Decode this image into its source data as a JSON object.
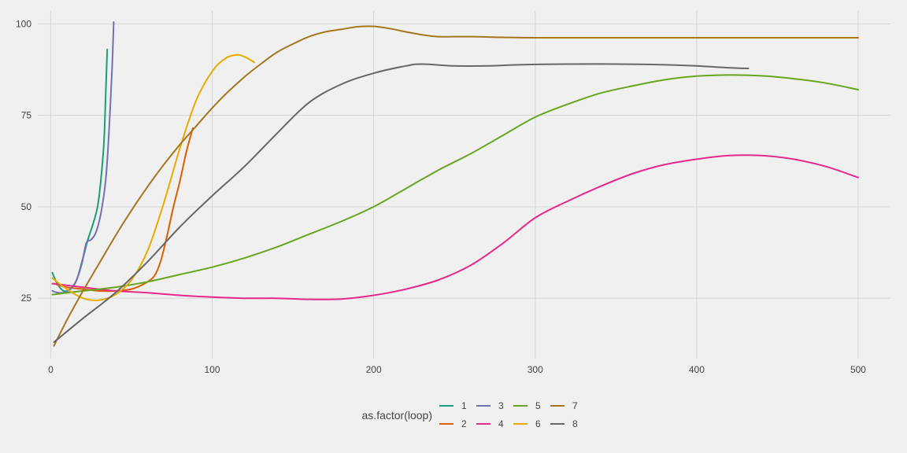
{
  "chart_data": {
    "type": "line",
    "title": "",
    "xlabel": "",
    "ylabel": "",
    "xlim": [
      -8,
      520
    ],
    "ylim": [
      8.5,
      103.5
    ],
    "x_ticks": [
      0,
      100,
      200,
      300,
      400,
      500
    ],
    "y_ticks": [
      25,
      50,
      75,
      100
    ],
    "grid": true,
    "legend": {
      "title": "as.factor(loop)",
      "position": "bottom"
    },
    "series": [
      {
        "name": "1",
        "color": "#1b9e77",
        "width": 2,
        "points": [
          [
            1,
            32
          ],
          [
            4,
            29
          ],
          [
            8,
            27
          ],
          [
            12,
            27.5
          ],
          [
            16,
            30
          ],
          [
            20,
            36
          ],
          [
            23,
            41
          ],
          [
            26,
            45
          ],
          [
            29,
            50
          ],
          [
            31,
            57
          ],
          [
            33,
            68
          ],
          [
            34,
            80
          ],
          [
            35,
            93
          ]
        ]
      },
      {
        "name": "2",
        "color": "#d95f02",
        "width": 2,
        "points": [
          [
            2,
            29
          ],
          [
            10,
            28
          ],
          [
            20,
            27.5
          ],
          [
            30,
            27
          ],
          [
            40,
            27
          ],
          [
            50,
            27.5
          ],
          [
            58,
            29
          ],
          [
            64,
            31
          ],
          [
            68,
            35
          ],
          [
            72,
            42
          ],
          [
            76,
            50
          ],
          [
            80,
            57
          ],
          [
            84,
            65
          ],
          [
            88,
            71.5
          ]
        ]
      },
      {
        "name": "3",
        "color": "#7570b3",
        "width": 2,
        "points": [
          [
            1,
            27
          ],
          [
            5,
            26.5
          ],
          [
            10,
            26.8
          ],
          [
            15,
            29
          ],
          [
            19,
            34
          ],
          [
            22,
            40
          ],
          [
            25,
            41
          ],
          [
            28,
            43
          ],
          [
            31,
            48
          ],
          [
            34,
            57
          ],
          [
            36,
            70
          ],
          [
            38,
            88
          ],
          [
            39,
            100.5
          ]
        ]
      },
      {
        "name": "4",
        "color": "#e7298a",
        "width": 2,
        "points": [
          [
            1,
            29
          ],
          [
            20,
            28
          ],
          [
            40,
            27
          ],
          [
            60,
            26.5
          ],
          [
            80,
            25.8
          ],
          [
            100,
            25.3
          ],
          [
            120,
            25
          ],
          [
            140,
            25
          ],
          [
            160,
            24.7
          ],
          [
            180,
            24.8
          ],
          [
            200,
            25.8
          ],
          [
            220,
            27.5
          ],
          [
            240,
            30
          ],
          [
            260,
            34
          ],
          [
            280,
            40
          ],
          [
            300,
            47
          ],
          [
            320,
            51.5
          ],
          [
            340,
            55.5
          ],
          [
            360,
            59
          ],
          [
            380,
            61.5
          ],
          [
            400,
            63
          ],
          [
            420,
            64
          ],
          [
            440,
            64
          ],
          [
            460,
            63
          ],
          [
            480,
            61
          ],
          [
            500,
            58
          ]
        ]
      },
      {
        "name": "5",
        "color": "#66a61e",
        "width": 2,
        "points": [
          [
            1,
            26
          ],
          [
            20,
            27
          ],
          [
            40,
            28
          ],
          [
            60,
            29.5
          ],
          [
            80,
            31.5
          ],
          [
            100,
            33.5
          ],
          [
            120,
            36
          ],
          [
            140,
            39
          ],
          [
            160,
            42.5
          ],
          [
            180,
            46
          ],
          [
            200,
            50
          ],
          [
            220,
            55
          ],
          [
            240,
            60
          ],
          [
            260,
            64.5
          ],
          [
            280,
            69.5
          ],
          [
            300,
            74.5
          ],
          [
            320,
            78
          ],
          [
            340,
            81
          ],
          [
            360,
            83
          ],
          [
            380,
            84.7
          ],
          [
            400,
            85.7
          ],
          [
            420,
            86
          ],
          [
            440,
            85.8
          ],
          [
            460,
            85
          ],
          [
            480,
            83.8
          ],
          [
            500,
            82
          ]
        ]
      },
      {
        "name": "6",
        "color": "#e6ab02",
        "width": 2,
        "points": [
          [
            1,
            30.5
          ],
          [
            10,
            27.5
          ],
          [
            20,
            25
          ],
          [
            30,
            24.5
          ],
          [
            40,
            26
          ],
          [
            50,
            30
          ],
          [
            60,
            38
          ],
          [
            70,
            51
          ],
          [
            80,
            66
          ],
          [
            90,
            79
          ],
          [
            100,
            87
          ],
          [
            108,
            90.5
          ],
          [
            115,
            91.5
          ],
          [
            120,
            91
          ],
          [
            126,
            89.5
          ]
        ]
      },
      {
        "name": "7",
        "color": "#a6761d",
        "width": 2,
        "points": [
          [
            2,
            12
          ],
          [
            10,
            19
          ],
          [
            20,
            27
          ],
          [
            30,
            34.5
          ],
          [
            40,
            42
          ],
          [
            50,
            49
          ],
          [
            60,
            55.5
          ],
          [
            70,
            61.5
          ],
          [
            80,
            67
          ],
          [
            90,
            72
          ],
          [
            100,
            77
          ],
          [
            110,
            81.5
          ],
          [
            120,
            85.5
          ],
          [
            130,
            89
          ],
          [
            140,
            92.2
          ],
          [
            150,
            94.5
          ],
          [
            160,
            96.5
          ],
          [
            170,
            97.8
          ],
          [
            180,
            98.5
          ],
          [
            190,
            99.2
          ],
          [
            200,
            99.3
          ],
          [
            210,
            98.7
          ],
          [
            220,
            97.8
          ],
          [
            230,
            97
          ],
          [
            240,
            96.5
          ],
          [
            260,
            96.5
          ],
          [
            280,
            96.3
          ],
          [
            300,
            96.2
          ],
          [
            350,
            96.2
          ],
          [
            400,
            96.2
          ],
          [
            450,
            96.2
          ],
          [
            500,
            96.2
          ]
        ]
      },
      {
        "name": "8",
        "color": "#666666",
        "width": 2,
        "points": [
          [
            2,
            13
          ],
          [
            20,
            19.5
          ],
          [
            40,
            26.5
          ],
          [
            60,
            35
          ],
          [
            80,
            44.5
          ],
          [
            100,
            53
          ],
          [
            120,
            61
          ],
          [
            140,
            70
          ],
          [
            160,
            78.5
          ],
          [
            180,
            83.5
          ],
          [
            200,
            86.5
          ],
          [
            220,
            88.5
          ],
          [
            230,
            89
          ],
          [
            250,
            88.5
          ],
          [
            270,
            88.5
          ],
          [
            290,
            88.8
          ],
          [
            320,
            89
          ],
          [
            350,
            89
          ],
          [
            380,
            88.8
          ],
          [
            400,
            88.5
          ],
          [
            420,
            88
          ],
          [
            432,
            87.8
          ]
        ]
      }
    ]
  }
}
